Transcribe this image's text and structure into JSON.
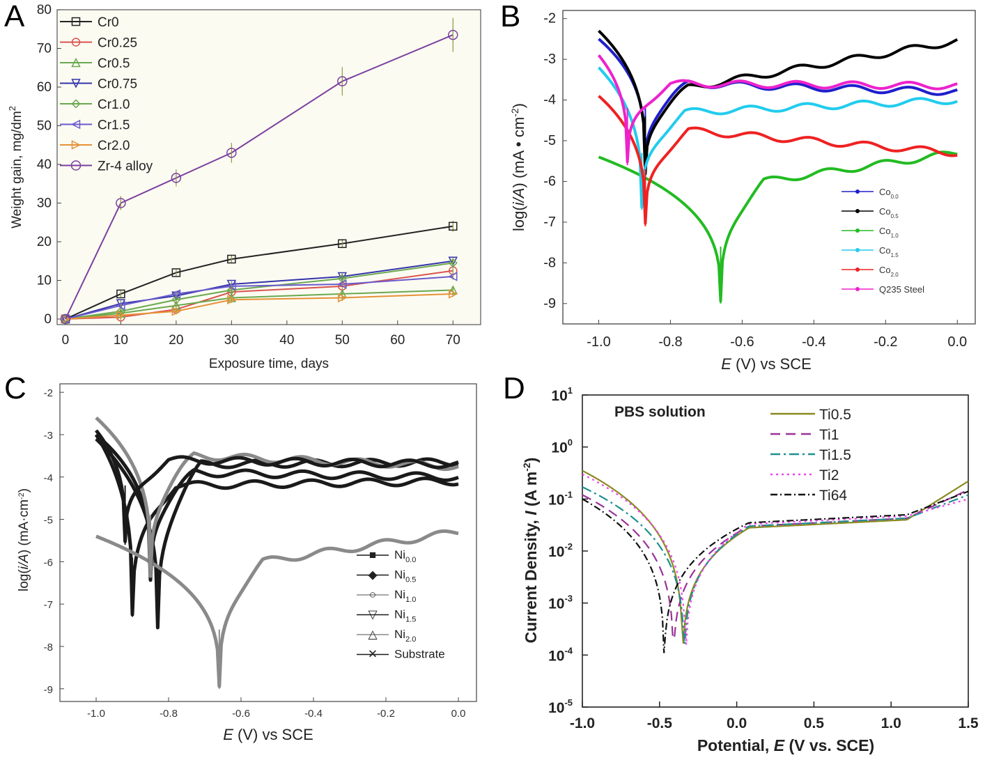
{
  "panels": [
    {
      "letter": "A",
      "type": "line",
      "ylabel": "Weight gain, mg/dm",
      "ylabel_sup": "2",
      "xlabel": "Exposure time, days",
      "xlim": [
        0,
        75
      ],
      "ylim": [
        0,
        80
      ],
      "xticks": [
        "0",
        "10",
        "20",
        "30",
        "40",
        "50",
        "60",
        "70"
      ],
      "yticks": [
        "0",
        "10",
        "20",
        "30",
        "40",
        "50",
        "60",
        "70",
        "80"
      ],
      "x": [
        0,
        10,
        20,
        30,
        50,
        70
      ],
      "series": [
        {
          "name": "Cr0",
          "color": "#222222",
          "marker": "square",
          "values": [
            0,
            6.5,
            12,
            15.5,
            19.5,
            24
          ]
        },
        {
          "name": "Cr0.25",
          "color": "#d9534f",
          "marker": "circle",
          "values": [
            0,
            0.5,
            2.5,
            7,
            8.5,
            12.5
          ]
        },
        {
          "name": "Cr0.5",
          "color": "#6aa84f",
          "marker": "triangle",
          "values": [
            0,
            1.5,
            3.5,
            5.5,
            6.5,
            7.5
          ]
        },
        {
          "name": "Cr0.75",
          "color": "#3333aa",
          "marker": "tri-down",
          "values": [
            0,
            4,
            6,
            9,
            11,
            15
          ]
        },
        {
          "name": "Cr1.0",
          "color": "#6aa84f",
          "marker": "diamond",
          "values": [
            0,
            2,
            5,
            7.5,
            10.5,
            14.5
          ]
        },
        {
          "name": "Cr1.5",
          "color": "#6a5acd",
          "marker": "tri-left",
          "values": [
            0,
            3.5,
            6.5,
            8.5,
            9,
            11
          ]
        },
        {
          "name": "Cr2.0",
          "color": "#e69138",
          "marker": "tri-right",
          "values": [
            0,
            1,
            2,
            5,
            5.5,
            6.5
          ]
        },
        {
          "name": "Zr-4 alloy",
          "color": "#7b3f9e",
          "marker": "hexagon",
          "values": [
            0,
            30,
            36.5,
            43,
            61.5,
            73.5
          ]
        }
      ]
    },
    {
      "letter": "B",
      "type": "line",
      "ylabel_pre": "log(",
      "ylabel_it": "i/A",
      "ylabel_post": ")  (mA • cm",
      "ylabel_sup": "-2",
      "ylabel_end": ")",
      "xlabel_it": "E",
      "xlabel_rest": " (V)  vs   SCE",
      "xlim": [
        -1.1,
        0.05
      ],
      "ylim": [
        -9.5,
        -1.8
      ],
      "xticks": [
        "-1.0",
        "-0.8",
        "-0.6",
        "-0.4",
        "-0.2",
        "0.0"
      ],
      "yticks": [
        "-2",
        "-3",
        "-4",
        "-5",
        "-6",
        "-7",
        "-8",
        "-9"
      ],
      "series": [
        {
          "name": "Co",
          "sub": "0.0",
          "color": "#1f1fcc",
          "ecorr": -0.87,
          "icorr": -5.6,
          "left": -2.5,
          "right": -3.8,
          "passive": -3.6
        },
        {
          "name": "Co",
          "sub": "0.5",
          "color": "#000000",
          "ecorr": -0.87,
          "icorr": -5.8,
          "left": -2.3,
          "right": -2.55,
          "passive": -3.7
        },
        {
          "name": "Co",
          "sub": "1.0",
          "color": "#22bb22",
          "ecorr": -0.66,
          "icorr": -9.0,
          "left": -5.4,
          "right": -5.3,
          "passive": -6.0
        },
        {
          "name": "Co",
          "sub": "1.5",
          "color": "#22ccee",
          "ecorr": -0.88,
          "icorr": -6.7,
          "left": -3.2,
          "right": -4.0,
          "passive": -4.3
        },
        {
          "name": "Co",
          "sub": "2.0",
          "color": "#ee2222",
          "ecorr": -0.87,
          "icorr": -7.1,
          "left": -3.9,
          "right": -5.3,
          "passive": -4.75
        },
        {
          "name": "Q235 Steel",
          "sub": "",
          "color": "#ee22cc",
          "ecorr": -0.92,
          "icorr": -5.6,
          "left": -2.9,
          "right": -3.65,
          "passive": -3.6
        }
      ]
    },
    {
      "letter": "C",
      "type": "line",
      "ylabel_pre": "log(",
      "ylabel_it": "i/A",
      "ylabel_post": ")  (mA·cm",
      "ylabel_sup": "-2",
      "ylabel_end": ")",
      "xlabel_it": "E",
      "xlabel_rest": " (V)  vs   SCE",
      "xlim": [
        -1.1,
        0.05
      ],
      "ylim": [
        -9.3,
        -1.8
      ],
      "xticks": [
        "-1.0",
        "-0.8",
        "-0.6",
        "-0.4",
        "-0.2",
        "0.0"
      ],
      "yticks": [
        "-2",
        "-3",
        "-4",
        "-5",
        "-6",
        "-7",
        "-8",
        "-9"
      ],
      "series": [
        {
          "name": "Ni",
          "sub": "0.0",
          "marker": "■",
          "color": "#1a1a1a",
          "ecorr": -0.9,
          "icorr": -7.3,
          "left": -3.0,
          "right": -4.1,
          "passive": -4.2
        },
        {
          "name": "Ni",
          "sub": "0.5",
          "marker": "◆",
          "color": "#1a1a1a",
          "ecorr": -0.83,
          "icorr": -7.55,
          "left": -3.1,
          "right": -3.65,
          "passive": -3.7
        },
        {
          "name": "Ni",
          "sub": "1.0",
          "marker": "○",
          "color": "#8a8a8a",
          "ecorr": -0.66,
          "icorr": -9.0,
          "left": -5.4,
          "right": -5.3,
          "passive": -6.0
        },
        {
          "name": "Ni",
          "sub": "1.5",
          "marker": "▽",
          "color": "#1a1a1a",
          "ecorr": -0.85,
          "icorr": -6.4,
          "left": -3.0,
          "right": -4.0,
          "passive": -3.9
        },
        {
          "name": "Ni",
          "sub": "2.0",
          "marker": "△",
          "color": "#8a8a8a",
          "ecorr": -0.85,
          "icorr": -6.3,
          "left": -2.6,
          "right": -3.75,
          "passive": -3.5
        },
        {
          "name": "Substrate",
          "sub": "",
          "marker": "✕",
          "color": "#1a1a1a",
          "ecorr": -0.92,
          "icorr": -5.6,
          "left": -2.9,
          "right": -3.7,
          "passive": -3.6
        }
      ]
    },
    {
      "letter": "D",
      "type": "line",
      "ylabel_pre": "Current Density, ",
      "ylabel_it": "I",
      "ylabel_post": " (A m",
      "ylabel_sup": "-2",
      "ylabel_end": ")",
      "xlabel_pre": "Potential, ",
      "xlabel_it": "E",
      "xlabel_post": " (V vs. SCE)",
      "annotation": "PBS solution",
      "xlim": [
        -1.0,
        1.5
      ],
      "ylim_log10": [
        -5,
        1
      ],
      "yscale": "log",
      "xticks": [
        "-1.0",
        "-0.5",
        "0.0",
        "0.5",
        "1.0",
        "1.5"
      ],
      "yticks": [
        [
          "10",
          "1"
        ],
        [
          "10",
          "0"
        ],
        [
          "10",
          "-1"
        ],
        [
          "10",
          "-2"
        ],
        [
          "10",
          "-3"
        ],
        [
          "10",
          "-4"
        ],
        [
          "10",
          "-5"
        ]
      ],
      "series": [
        {
          "name": "Ti0.5",
          "color": "#8a8a20",
          "dash": "",
          "ecorr": -0.35,
          "left": 0.35,
          "plat": 0.028,
          "end": 0.22
        },
        {
          "name": "Ti1",
          "color": "#993399",
          "dash": "14,8",
          "ecorr": -0.41,
          "left": 0.12,
          "plat": 0.03,
          "end": 0.15
        },
        {
          "name": "Ti1.5",
          "color": "#1f8f8f",
          "dash": "14,5,3,5",
          "ecorr": -0.34,
          "left": 0.17,
          "plat": 0.03,
          "end": 0.12
        },
        {
          "name": "Ti2",
          "color": "#ee44ee",
          "dash": "3,5",
          "ecorr": -0.33,
          "left": 0.3,
          "plat": 0.033,
          "end": 0.1
        },
        {
          "name": "Ti64",
          "color": "#111111",
          "dash": "10,4,2,4",
          "ecorr": -0.47,
          "left": 0.1,
          "plat": 0.035,
          "end": 0.14
        }
      ]
    }
  ]
}
